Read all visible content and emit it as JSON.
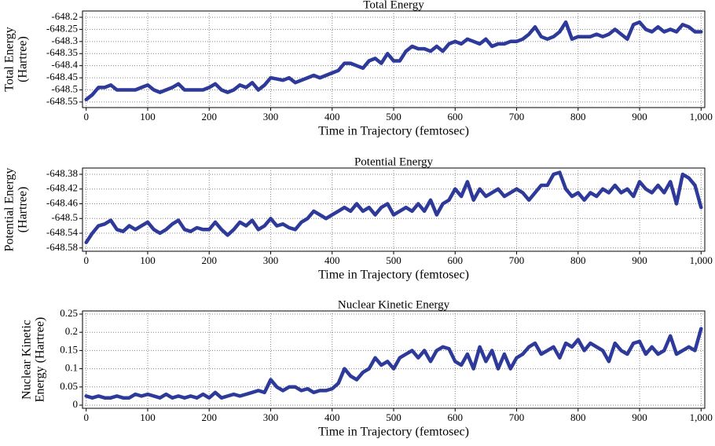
{
  "chart_data": [
    {
      "type": "line",
      "title": "Total Energy",
      "x_label": "Time in Trajectory (femtosec)",
      "y_label": [
        "Total Energy",
        "(Hartree)"
      ],
      "xlim": [
        -6,
        1006
      ],
      "ylim": [
        -648.573,
        -648.174
      ],
      "xticks": [
        0,
        100,
        200,
        300,
        400,
        500,
        600,
        700,
        800,
        900,
        {
          "value": 1000,
          "label": "1,000"
        }
      ],
      "yticks": [
        -648.2,
        -648.25,
        -648.3,
        -648.35,
        -648.4,
        -648.45,
        -648.5,
        -648.55
      ],
      "grid": true,
      "x": [
        0,
        10,
        20,
        30,
        40,
        50,
        60,
        70,
        80,
        90,
        100,
        110,
        120,
        130,
        140,
        150,
        160,
        170,
        180,
        190,
        200,
        210,
        220,
        230,
        240,
        250,
        260,
        270,
        280,
        290,
        300,
        310,
        320,
        330,
        340,
        350,
        360,
        370,
        380,
        390,
        400,
        410,
        420,
        430,
        440,
        450,
        460,
        470,
        480,
        490,
        500,
        510,
        520,
        530,
        540,
        550,
        560,
        570,
        580,
        590,
        600,
        610,
        620,
        630,
        640,
        650,
        660,
        670,
        680,
        690,
        700,
        710,
        720,
        730,
        740,
        750,
        760,
        770,
        780,
        790,
        800,
        810,
        820,
        830,
        840,
        850,
        860,
        870,
        880,
        890,
        900,
        910,
        920,
        930,
        940,
        950,
        960,
        970,
        980,
        990,
        1000
      ],
      "series": [
        {
          "name": "Total Energy",
          "color": "#2e3a9a",
          "values": [
            -648.54,
            -648.52,
            -648.49,
            -648.49,
            -648.48,
            -648.5,
            -648.5,
            -648.5,
            -648.5,
            -648.49,
            -648.48,
            -648.5,
            -648.51,
            -648.5,
            -648.49,
            -648.475,
            -648.5,
            -648.5,
            -648.5,
            -648.5,
            -648.49,
            -648.475,
            -648.5,
            -648.51,
            -648.5,
            -648.48,
            -648.49,
            -648.47,
            -648.5,
            -648.48,
            -648.45,
            -648.455,
            -648.46,
            -648.45,
            -648.47,
            -648.46,
            -648.45,
            -648.44,
            -648.45,
            -648.44,
            -648.43,
            -648.42,
            -648.39,
            -648.39,
            -648.4,
            -648.41,
            -648.38,
            -648.37,
            -648.39,
            -648.35,
            -648.38,
            -648.38,
            -648.34,
            -648.32,
            -648.33,
            -648.33,
            -648.34,
            -648.32,
            -648.34,
            -648.31,
            -648.3,
            -648.31,
            -648.29,
            -648.3,
            -648.31,
            -648.29,
            -648.32,
            -648.31,
            -648.31,
            -648.3,
            -648.3,
            -648.29,
            -648.27,
            -648.24,
            -648.28,
            -648.29,
            -648.28,
            -648.26,
            -648.22,
            -648.29,
            -648.28,
            -648.28,
            -648.28,
            -648.27,
            -648.28,
            -648.27,
            -648.25,
            -648.27,
            -648.29,
            -648.23,
            -648.22,
            -648.25,
            -648.26,
            -648.24,
            -648.26,
            -648.25,
            -648.26,
            -648.23,
            -648.24,
            -648.26,
            -648.26
          ]
        }
      ]
    },
    {
      "type": "line",
      "title": "Potential Energy",
      "x_label": "Time in Trajectory (femtosec)",
      "y_label": [
        "Potential Energy",
        "(Hartree)"
      ],
      "xlim": [
        -6,
        1006
      ],
      "ylim": [
        -648.589,
        -648.363
      ],
      "xticks": [
        0,
        100,
        200,
        300,
        400,
        500,
        600,
        700,
        800,
        900,
        {
          "value": 1000,
          "label": "1,000"
        }
      ],
      "yticks": [
        -648.38,
        -648.42,
        -648.46,
        -648.5,
        -648.54,
        -648.58
      ],
      "grid": true,
      "x": [
        0,
        10,
        20,
        30,
        40,
        50,
        60,
        70,
        80,
        90,
        100,
        110,
        120,
        130,
        140,
        150,
        160,
        170,
        180,
        190,
        200,
        210,
        220,
        230,
        240,
        250,
        260,
        270,
        280,
        290,
        300,
        310,
        320,
        330,
        340,
        350,
        360,
        370,
        380,
        390,
        400,
        410,
        420,
        430,
        440,
        450,
        460,
        470,
        480,
        490,
        500,
        510,
        520,
        530,
        540,
        550,
        560,
        570,
        580,
        590,
        600,
        610,
        620,
        630,
        640,
        650,
        660,
        670,
        680,
        690,
        700,
        710,
        720,
        730,
        740,
        750,
        760,
        770,
        780,
        790,
        800,
        810,
        820,
        830,
        840,
        850,
        860,
        870,
        880,
        890,
        900,
        910,
        920,
        930,
        940,
        950,
        960,
        970,
        980,
        990,
        1000
      ],
      "series": [
        {
          "name": "Potential Energy",
          "color": "#2e3a9a",
          "values": [
            -648.565,
            -648.54,
            -648.52,
            -648.515,
            -648.505,
            -648.53,
            -648.535,
            -648.52,
            -648.53,
            -648.52,
            -648.51,
            -648.53,
            -648.54,
            -648.53,
            -648.515,
            -648.505,
            -648.53,
            -648.535,
            -648.525,
            -648.53,
            -648.53,
            -648.51,
            -648.53,
            -648.545,
            -648.53,
            -648.51,
            -648.52,
            -648.505,
            -648.53,
            -648.52,
            -648.5,
            -648.52,
            -648.515,
            -648.525,
            -648.53,
            -648.51,
            -648.5,
            -648.48,
            -648.49,
            -648.5,
            -648.49,
            -648.48,
            -648.47,
            -648.48,
            -648.46,
            -648.48,
            -648.47,
            -648.49,
            -648.47,
            -648.46,
            -648.49,
            -648.48,
            -648.47,
            -648.48,
            -648.46,
            -648.48,
            -648.45,
            -648.49,
            -648.46,
            -648.45,
            -648.42,
            -648.44,
            -648.4,
            -648.45,
            -648.42,
            -648.44,
            -648.43,
            -648.42,
            -648.44,
            -648.43,
            -648.42,
            -648.43,
            -648.45,
            -648.43,
            -648.41,
            -648.41,
            -648.38,
            -648.375,
            -648.42,
            -648.44,
            -648.43,
            -648.45,
            -648.43,
            -648.44,
            -648.42,
            -648.43,
            -648.41,
            -648.43,
            -648.42,
            -648.44,
            -648.4,
            -648.42,
            -648.43,
            -648.41,
            -648.43,
            -648.4,
            -648.46,
            -648.38,
            -648.39,
            -648.41,
            -648.47
          ]
        }
      ]
    },
    {
      "type": "line",
      "title": "Nuclear Kinetic Energy",
      "x_label": "Time in Trajectory (femtosec)",
      "y_label": [
        "Nuclear Kinetic",
        "Energy (Hartree)"
      ],
      "xlim": [
        -6,
        1006
      ],
      "ylim": [
        -0.0086,
        0.2586
      ],
      "xticks": [
        0,
        100,
        200,
        300,
        400,
        500,
        600,
        700,
        800,
        900,
        {
          "value": 1000,
          "label": "1,000"
        }
      ],
      "yticks": [
        0,
        0.05,
        0.1,
        0.15,
        0.2,
        0.25
      ],
      "grid": true,
      "x": [
        0,
        10,
        20,
        30,
        40,
        50,
        60,
        70,
        80,
        90,
        100,
        110,
        120,
        130,
        140,
        150,
        160,
        170,
        180,
        190,
        200,
        210,
        220,
        230,
        240,
        250,
        260,
        270,
        280,
        290,
        300,
        310,
        320,
        330,
        340,
        350,
        360,
        370,
        380,
        390,
        400,
        410,
        420,
        430,
        440,
        450,
        460,
        470,
        480,
        490,
        500,
        510,
        520,
        530,
        540,
        550,
        560,
        570,
        580,
        590,
        600,
        610,
        620,
        630,
        640,
        650,
        660,
        670,
        680,
        690,
        700,
        710,
        720,
        730,
        740,
        750,
        760,
        770,
        780,
        790,
        800,
        810,
        820,
        830,
        840,
        850,
        860,
        870,
        880,
        890,
        900,
        910,
        920,
        930,
        940,
        950,
        960,
        970,
        980,
        990,
        1000
      ],
      "series": [
        {
          "name": "Nuclear Kinetic Energy",
          "color": "#2e3a9a",
          "values": [
            0.025,
            0.02,
            0.025,
            0.02,
            0.02,
            0.025,
            0.02,
            0.02,
            0.03,
            0.025,
            0.03,
            0.025,
            0.02,
            0.03,
            0.02,
            0.025,
            0.02,
            0.025,
            0.02,
            0.03,
            0.02,
            0.035,
            0.02,
            0.025,
            0.03,
            0.025,
            0.03,
            0.035,
            0.04,
            0.035,
            0.07,
            0.05,
            0.04,
            0.05,
            0.05,
            0.04,
            0.045,
            0.035,
            0.04,
            0.04,
            0.045,
            0.06,
            0.1,
            0.08,
            0.07,
            0.09,
            0.1,
            0.13,
            0.11,
            0.12,
            0.1,
            0.13,
            0.14,
            0.15,
            0.13,
            0.15,
            0.12,
            0.15,
            0.16,
            0.155,
            0.12,
            0.11,
            0.14,
            0.1,
            0.16,
            0.12,
            0.15,
            0.1,
            0.14,
            0.1,
            0.13,
            0.14,
            0.16,
            0.17,
            0.14,
            0.15,
            0.16,
            0.13,
            0.17,
            0.16,
            0.18,
            0.15,
            0.17,
            0.16,
            0.15,
            0.12,
            0.17,
            0.15,
            0.14,
            0.17,
            0.175,
            0.14,
            0.16,
            0.14,
            0.15,
            0.19,
            0.14,
            0.15,
            0.16,
            0.15,
            0.21
          ]
        }
      ]
    }
  ]
}
